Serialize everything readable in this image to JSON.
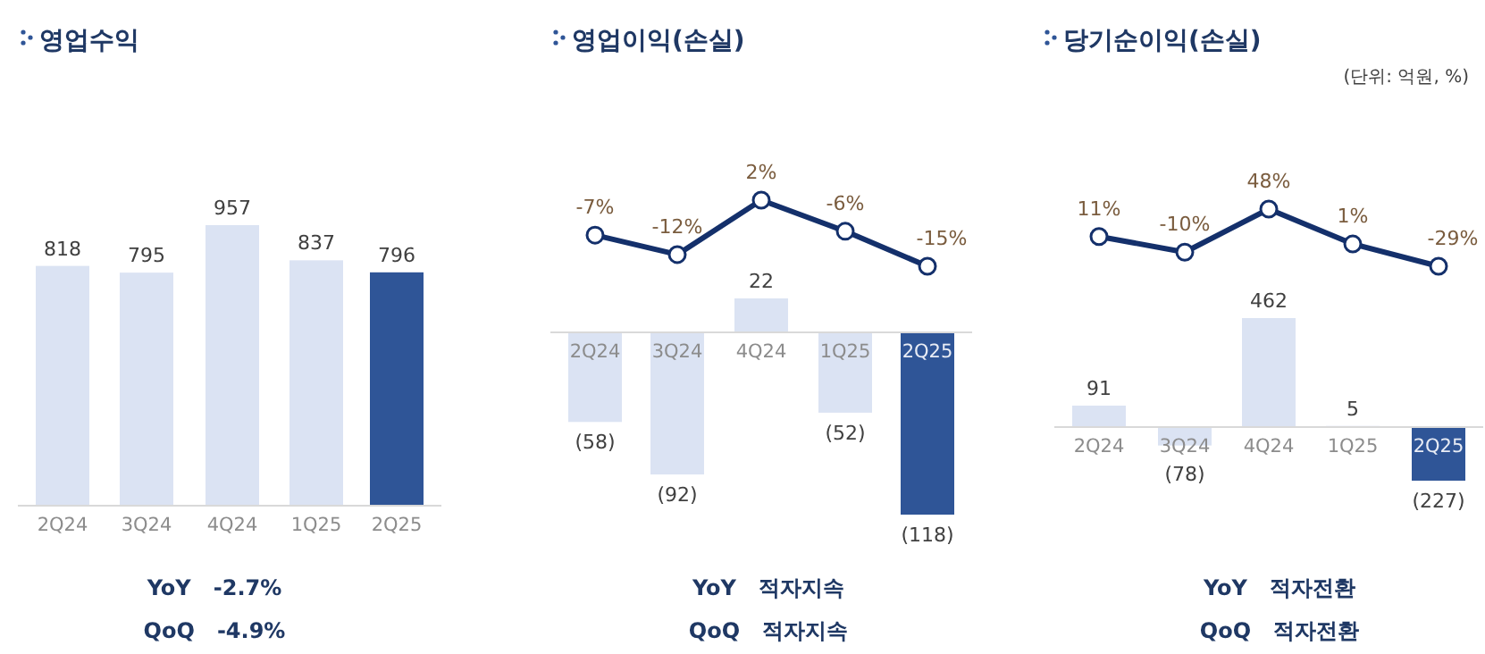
{
  "chart_data": [
    {
      "type": "bar",
      "title": "영업수익",
      "categories": [
        "2Q24",
        "3Q24",
        "4Q24",
        "1Q25",
        "2Q25"
      ],
      "values": [
        818,
        795,
        957,
        837,
        796
      ],
      "colors": [
        "#dbe3f3",
        "#dbe3f3",
        "#dbe3f3",
        "#dbe3f3",
        "#2f5597"
      ],
      "data_labels": true,
      "annotations": [
        "YoY   -2.7%",
        "QoQ   -4.9%"
      ]
    },
    {
      "type": "bar",
      "categories": [
        "2Q24",
        "3Q24",
        "4Q24",
        "1Q25",
        "2Q25"
      ],
      "values": [
        -58,
        -92,
        22,
        -52,
        -118
      ],
      "colors": [
        "#dbe3f3",
        "#dbe3f3",
        "#dbe3f3",
        "#dbe3f3",
        "#2f5597"
      ],
      "value_labels": [
        "(58)",
        "(92)",
        "22",
        "(52)",
        "(118)"
      ],
      "annotations": [
        "YoY   적자지속",
        "QoQ   적자지속"
      ]
    },
    {
      "type": "line",
      "title": "영업이익(손실)",
      "categories": [
        null,
        null,
        null,
        null,
        null
      ],
      "series": [
        {
          "color": "#14306b",
          "values": [
            -7,
            -12,
            2,
            -6,
            -15
          ],
          "value_labels": [
            "-7%",
            "-12%",
            "2%",
            "-6%",
            "-15%"
          ]
        }
      ],
      "marker": "circle"
    },
    {
      "type": "bar",
      "categories": [
        "2Q24",
        "3Q24",
        "4Q24",
        "1Q25",
        "2Q25"
      ],
      "values": [
        91,
        -78,
        462,
        5,
        -227
      ],
      "colors": [
        "#dbe3f3",
        "#dbe3f3",
        "#dbe3f3",
        "#dbe3f3",
        "#2f5597"
      ],
      "value_labels": [
        "91",
        "(78)",
        "462",
        "5",
        "(227)"
      ],
      "annotations": [
        "YoY   적자전환",
        "QoQ   적자전환"
      ]
    },
    {
      "type": "line",
      "title": "당기순이익(손실)",
      "annotations": [
        "(단위: 억원, %)"
      ],
      "categories": [
        null,
        null,
        null,
        null,
        null
      ],
      "series": [
        {
          "color": "#14306b",
          "values": [
            11,
            -10,
            48,
            1,
            -29
          ],
          "value_labels": [
            "11%",
            "-10%",
            "48%",
            "1%",
            "-29%"
          ]
        }
      ],
      "marker": "circle"
    }
  ]
}
